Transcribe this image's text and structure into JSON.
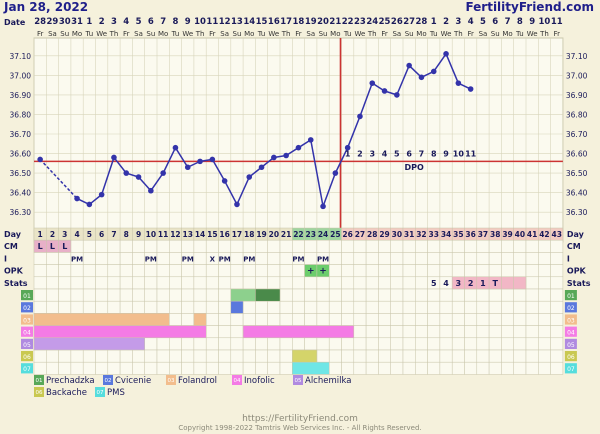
{
  "header": {
    "date": "Jan 28, 2022",
    "site": "FertilityFriend.com",
    "date_label": "Date"
  },
  "date_nums": [
    "28",
    "29",
    "30",
    "31",
    "1",
    "2",
    "3",
    "4",
    "5",
    "6",
    "7",
    "8",
    "9",
    "10",
    "11",
    "12",
    "13",
    "14",
    "15",
    "16",
    "17",
    "18",
    "19",
    "20",
    "21",
    "22",
    "23",
    "24",
    "25",
    "26",
    "27",
    "28",
    "1",
    "2",
    "3",
    "4",
    "5",
    "6",
    "7",
    "8",
    "9",
    "10",
    "11"
  ],
  "weekdays": [
    "Fr",
    "Sa",
    "Su",
    "Mo",
    "Tu",
    "We",
    "Th",
    "Fr",
    "Sa",
    "Su",
    "Mo",
    "Tu",
    "We",
    "Th",
    "Fr",
    "Sa",
    "Su",
    "Mo",
    "Tu",
    "We",
    "Th",
    "Fr",
    "Sa",
    "Su",
    "Mo",
    "Tu",
    "We",
    "Th",
    "Fr",
    "Sa",
    "Su",
    "Mo",
    "Tu",
    "We",
    "Th",
    "Fr",
    "Sa",
    "Su",
    "Mo",
    "Tu",
    "We",
    "Th",
    "Fr"
  ],
  "temp_axis": [
    "37.10",
    "37.00",
    "36.90",
    "36.80",
    "36.70",
    "36.60",
    "36.50",
    "36.40",
    "36.30"
  ],
  "chart_data": {
    "type": "line",
    "x_label": "Day",
    "ylim": [
      36.25,
      37.15
    ],
    "days": [
      1,
      2,
      3,
      4,
      5,
      6,
      7,
      8,
      9,
      10,
      11,
      12,
      13,
      14,
      15,
      16,
      17,
      18,
      19,
      20,
      21,
      22,
      23,
      24,
      25,
      26,
      27,
      28,
      29,
      30,
      31,
      32,
      33,
      34,
      35,
      36
    ],
    "temps": [
      36.57,
      null,
      null,
      36.37,
      36.34,
      36.39,
      36.58,
      36.5,
      36.48,
      36.41,
      36.5,
      36.63,
      36.53,
      36.56,
      36.57,
      36.46,
      36.34,
      36.48,
      36.53,
      36.58,
      36.59,
      36.63,
      36.67,
      36.33,
      36.5,
      36.63,
      36.79,
      36.96,
      36.92,
      36.9,
      37.05,
      36.99,
      37.02,
      37.11,
      36.96,
      36.93
    ],
    "coverline": 36.56,
    "ovulation_day": 25,
    "dpo_labels": [
      "1",
      "2",
      "3",
      "4",
      "5",
      "6",
      "7",
      "8",
      "9",
      "10",
      "11"
    ],
    "dpo_text": "DPO",
    "highlight_days": [
      22,
      23,
      24,
      25
    ],
    "line_color": "#3333aa",
    "coverline_color": "#cc3333",
    "ovulation_color": "#cc3333"
  },
  "row_labels": [
    "Day",
    "CM",
    "I",
    "OPK",
    "Stats",
    "01",
    "02",
    "03",
    "04",
    "05",
    "06",
    "07"
  ],
  "cm_values": [
    "L",
    "L",
    "L"
  ],
  "i_values": {
    "4": "PM",
    "10": "PM",
    "13": "PM",
    "15": "X",
    "16": "PM",
    "18": "PM",
    "22": "PM",
    "24": "PM"
  },
  "opk_values": {
    "23": "+",
    "24": "+"
  },
  "stats_values": {
    "33": "5",
    "34": "4",
    "35": "3",
    "36": "2",
    "37": "1",
    "38": "T"
  },
  "colors": {
    "cm_pink": "#e8b0c8",
    "opk_green": "#6ccd6c",
    "stats_pink": "#f2b7c6",
    "day_header_pre": "#e9e4c7",
    "day_header_ov": "#9fd59f",
    "day_header_post": "#f2ccc2",
    "grid": "#c9c6ab",
    "cell_bg": "#fbfaef"
  },
  "legend": [
    {
      "num": "01",
      "label": "Prechadzka",
      "color": "#58a858"
    },
    {
      "num": "02",
      "label": "Cvicenie",
      "color": "#5a78dd"
    },
    {
      "num": "03",
      "label": "Folandrol",
      "color": "#f2bd8d"
    },
    {
      "num": "04",
      "label": "Inofolic",
      "color": "#f47be5"
    },
    {
      "num": "05",
      "label": "Alchemilka",
      "color": "#b08ae0"
    },
    {
      "num": "06",
      "label": "Backache",
      "color": "#c9c850"
    },
    {
      "num": "07",
      "label": "PMS",
      "color": "#55dddd"
    }
  ],
  "bars": {
    "01": [
      [
        17,
        18,
        "#8dd08d"
      ],
      [
        19,
        20,
        "#4a8a4a"
      ]
    ],
    "02": [
      [
        17,
        17,
        "#5a78dd"
      ]
    ],
    "03": [
      [
        1,
        11,
        "#f2bd8d"
      ],
      [
        14,
        14,
        "#f2bd8d"
      ]
    ],
    "04": [
      [
        1,
        14,
        "#f47be5"
      ],
      [
        18,
        26,
        "#f47be5"
      ]
    ],
    "05": [
      [
        1,
        9,
        "#c49be8"
      ]
    ],
    "06": [
      [
        22,
        23,
        "#d4d46a"
      ]
    ],
    "07": [
      [
        22,
        24,
        "#6ee6e6"
      ]
    ]
  },
  "footer": {
    "url": "https://FertilityFriend.com",
    "copyright": "Copyright 1998-2022 Tamtris Web Services Inc. - All Rights Reserved."
  }
}
